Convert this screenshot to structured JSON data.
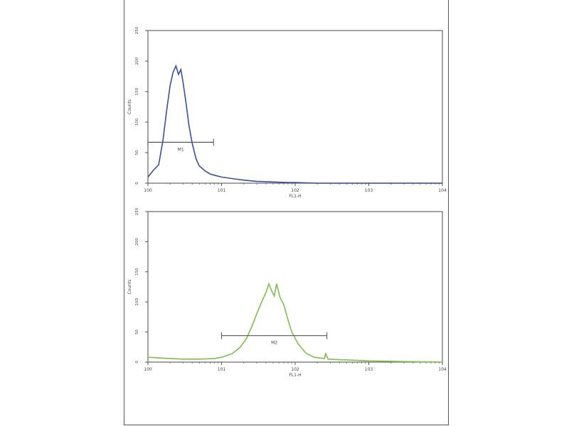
{
  "chart_data": [
    {
      "type": "line",
      "subtype": "histogram",
      "xlabel": "FL1-H",
      "ylabel": "Counts",
      "xscale": "log",
      "xlim": [
        1,
        10000
      ],
      "xticks": [
        "10^0",
        "10^1",
        "10^2",
        "10^3",
        "10^4"
      ],
      "ylim": [
        0,
        250
      ],
      "yticks": [
        "0",
        "50",
        "100",
        "150",
        "200",
        "250"
      ],
      "grid": false,
      "color": "#3a4da0",
      "marker": {
        "label": "M1",
        "range": [
          1,
          7.8
        ],
        "level": 67
      },
      "series": [
        {
          "x": [
            1,
            1.2,
            1.4,
            1.6,
            1.8,
            2.0,
            2.2,
            2.4,
            2.6,
            2.8,
            3.0,
            3.3,
            3.6,
            4,
            4.5,
            5,
            6,
            7,
            8,
            10,
            15,
            20,
            30,
            50,
            80,
            100,
            200,
            1000,
            10000
          ],
          "y": [
            10,
            22,
            30,
            70,
            120,
            160,
            182,
            192,
            178,
            186,
            165,
            130,
            95,
            65,
            40,
            28,
            20,
            15,
            13,
            10,
            7,
            5,
            3,
            2,
            1,
            1,
            0,
            0,
            0
          ]
        }
      ]
    },
    {
      "type": "line",
      "subtype": "histogram",
      "xlabel": "FL1-H",
      "ylabel": "Counts",
      "xscale": "log",
      "xlim": [
        1,
        10000
      ],
      "xticks": [
        "10^0",
        "10^1",
        "10^2",
        "10^3",
        "10^4"
      ],
      "ylim": [
        0,
        250
      ],
      "yticks": [
        "0",
        "50",
        "100",
        "150",
        "200",
        "250"
      ],
      "grid": false,
      "color": "#7cc04a",
      "marker": {
        "label": "M2",
        "range": [
          10,
          270
        ],
        "level": 44
      },
      "series": [
        {
          "x": [
            1,
            2,
            3,
            5,
            8,
            10,
            14,
            18,
            22,
            26,
            30,
            35,
            40,
            44,
            48,
            52,
            56,
            62,
            70,
            80,
            90,
            110,
            140,
            180,
            250,
            260,
            280,
            400,
            700,
            1000,
            3000,
            10000
          ],
          "y": [
            8,
            6,
            5,
            5,
            6,
            8,
            14,
            25,
            40,
            60,
            80,
            100,
            115,
            130,
            118,
            110,
            130,
            108,
            95,
            70,
            50,
            30,
            15,
            8,
            6,
            14,
            5,
            4,
            3,
            2,
            1,
            0
          ]
        }
      ]
    }
  ]
}
